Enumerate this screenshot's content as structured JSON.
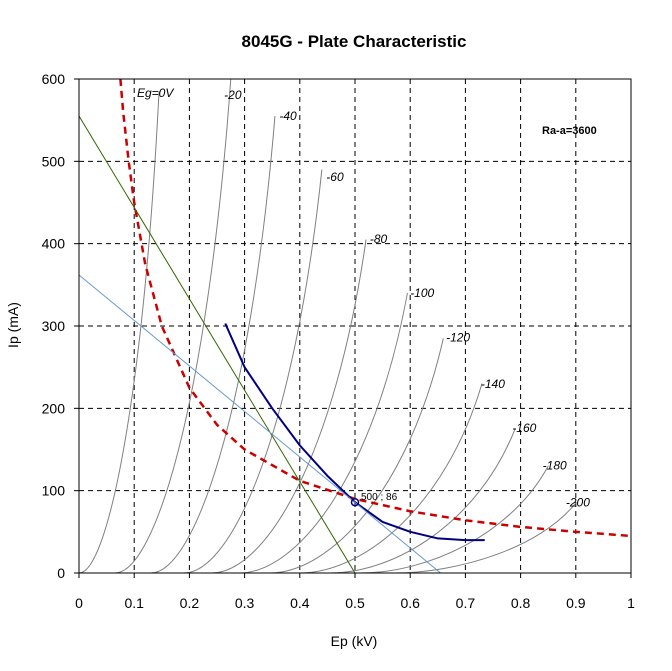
{
  "chart_data": {
    "type": "line",
    "title": "8045G - Plate Characteristic",
    "xlabel": "Ep (kV)",
    "ylabel": "Ip (mA)",
    "xlim": [
      0,
      1
    ],
    "ylim": [
      0,
      600
    ],
    "x_ticks": [
      "0",
      "0.1",
      "0.2",
      "0.3",
      "0.4",
      "0.5",
      "0.6",
      "0.7",
      "0.8",
      "0.9",
      "1"
    ],
    "y_ticks": [
      "0",
      "100",
      "200",
      "300",
      "400",
      "500",
      "600"
    ],
    "grid": true,
    "ra_label": "Ra-a=3600",
    "operating_point_label": "500 ; 86",
    "operating_point": [
      0.5,
      86
    ],
    "grid_curves": [
      {
        "label": "Eg=0V",
        "start": 0.0,
        "top": [
          0.145,
          585
        ],
        "label_pos": [
          0.105,
          578
        ]
      },
      {
        "label": "-20",
        "start": 0.065,
        "top": [
          0.275,
          600
        ],
        "label_pos": [
          0.263,
          576
        ]
      },
      {
        "label": "-40",
        "start": 0.13,
        "top": [
          0.355,
          555
        ],
        "label_pos": [
          0.363,
          550
        ]
      },
      {
        "label": "-60",
        "start": 0.19,
        "top": [
          0.44,
          490
        ],
        "label_pos": [
          0.448,
          476
        ]
      },
      {
        "label": "-80",
        "start": 0.24,
        "top": [
          0.52,
          405
        ],
        "label_pos": [
          0.527,
          401
        ]
      },
      {
        "label": "-100",
        "start": 0.29,
        "top": [
          0.595,
          340
        ],
        "label_pos": [
          0.6,
          335
        ]
      },
      {
        "label": "-120",
        "start": 0.345,
        "top": [
          0.66,
          285
        ],
        "label_pos": [
          0.665,
          281
        ]
      },
      {
        "label": "-140",
        "start": 0.4,
        "top": [
          0.73,
          230
        ],
        "label_pos": [
          0.728,
          225
        ]
      },
      {
        "label": "-160",
        "start": 0.455,
        "top": [
          0.79,
          175
        ],
        "label_pos": [
          0.785,
          171
        ]
      },
      {
        "label": "-180",
        "start": 0.51,
        "top": [
          0.85,
          130
        ],
        "label_pos": [
          0.84,
          126
        ]
      },
      {
        "label": "-200",
        "start": 0.57,
        "top": [
          0.9,
          85
        ],
        "label_pos": [
          0.882,
          81
        ]
      }
    ],
    "series": [
      {
        "color": "#cc0000",
        "style": "dashed",
        "x": [
          0.075,
          0.08,
          0.09,
          0.1,
          0.12,
          0.15,
          0.2,
          0.25,
          0.3,
          0.4,
          0.5,
          0.6,
          0.7,
          0.8,
          0.9,
          1.0
        ],
        "y": [
          600,
          560,
          500,
          450,
          375,
          300,
          225,
          180,
          150,
          112,
          90,
          75,
          64,
          56,
          50,
          45
        ]
      },
      {
        "color": "#000080",
        "style": "solid",
        "x": [
          0.265,
          0.3,
          0.35,
          0.4,
          0.45,
          0.5,
          0.55,
          0.6,
          0.65,
          0.7,
          0.735
        ],
        "y": [
          303,
          250,
          200,
          155,
          118,
          86,
          62,
          50,
          42,
          40,
          40
        ]
      },
      {
        "color": "#336600",
        "style": "solid",
        "x": [
          0.0,
          0.5
        ],
        "y": [
          555,
          0
        ]
      },
      {
        "color": "#6699cc",
        "style": "solid",
        "x": [
          0.0,
          0.655
        ],
        "y": [
          362,
          0
        ]
      }
    ]
  }
}
